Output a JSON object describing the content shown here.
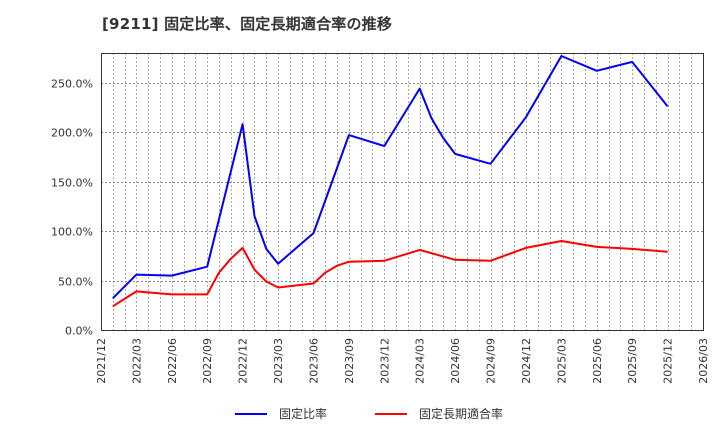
{
  "title": "[9211]  固定比率、固定長期適合率の推移",
  "colors": {
    "fixed_ratio": "#0000ff",
    "fixed_long_term_ratio": "#ff0000",
    "grid": "#aaaaaa",
    "axis": "#333333"
  },
  "legend": [
    {
      "label": "固定比率",
      "color": "#0000ff"
    },
    {
      "label": "固定長期適合率",
      "color": "#ff0000"
    }
  ],
  "chart_data": {
    "type": "line",
    "title": "[9211]  固定比率、固定長期適合率の推移",
    "xlabel": "",
    "ylabel": "",
    "ylim": [
      0,
      280
    ],
    "yticks": [
      0,
      50,
      100,
      150,
      200,
      250
    ],
    "ytick_labels": [
      "0.0%",
      "50.0%",
      "100.0%",
      "150.0%",
      "200.0%",
      "250.0%"
    ],
    "xtick_labels": [
      "2021/12",
      "2022/03",
      "2022/06",
      "2022/09",
      "2022/12",
      "2023/03",
      "2023/06",
      "2023/09",
      "2023/12",
      "2024/03",
      "2024/06",
      "2024/09",
      "2024/12",
      "2025/03",
      "2025/06",
      "2025/09",
      "2025/12",
      "2026/03"
    ],
    "x_start": "2021/12",
    "x_end": "2026/03",
    "x_unit": "month_offset_from_2021/12",
    "grid": true,
    "legend_position": "bottom",
    "series": [
      {
        "name": "固定比率",
        "color": "#0000ff",
        "points": [
          {
            "x": "2022/01",
            "m": 1,
            "y": 32
          },
          {
            "x": "2022/03",
            "m": 3,
            "y": 56
          },
          {
            "x": "2022/06",
            "m": 6,
            "y": 55
          },
          {
            "x": "2022/09",
            "m": 9,
            "y": 64
          },
          {
            "x": "2022/12",
            "m": 12,
            "y": 208
          },
          {
            "x": "2023/01",
            "m": 13,
            "y": 115
          },
          {
            "x": "2023/02",
            "m": 14,
            "y": 82
          },
          {
            "x": "2023/03",
            "m": 15,
            "y": 67
          },
          {
            "x": "2023/06",
            "m": 18,
            "y": 98
          },
          {
            "x": "2023/09",
            "m": 21,
            "y": 197
          },
          {
            "x": "2023/12",
            "m": 24,
            "y": 186
          },
          {
            "x": "2024/03",
            "m": 27,
            "y": 244
          },
          {
            "x": "2024/04",
            "m": 28,
            "y": 214
          },
          {
            "x": "2024/05",
            "m": 29,
            "y": 194
          },
          {
            "x": "2024/06",
            "m": 30,
            "y": 178
          },
          {
            "x": "2024/09",
            "m": 33,
            "y": 168
          },
          {
            "x": "2024/12",
            "m": 36,
            "y": 215
          },
          {
            "x": "2025/03",
            "m": 39,
            "y": 277
          },
          {
            "x": "2025/06",
            "m": 42,
            "y": 262
          },
          {
            "x": "2025/09",
            "m": 45,
            "y": 271
          },
          {
            "x": "2025/12",
            "m": 48,
            "y": 226
          }
        ]
      },
      {
        "name": "固定長期適合率",
        "color": "#ff0000",
        "points": [
          {
            "x": "2022/01",
            "m": 1,
            "y": 24
          },
          {
            "x": "2022/03",
            "m": 3,
            "y": 39
          },
          {
            "x": "2022/06",
            "m": 6,
            "y": 36
          },
          {
            "x": "2022/09",
            "m": 9,
            "y": 36
          },
          {
            "x": "2022/10",
            "m": 10,
            "y": 58
          },
          {
            "x": "2022/11",
            "m": 11,
            "y": 72
          },
          {
            "x": "2022/12",
            "m": 12,
            "y": 83
          },
          {
            "x": "2023/01",
            "m": 13,
            "y": 61
          },
          {
            "x": "2023/02",
            "m": 14,
            "y": 49
          },
          {
            "x": "2023/03",
            "m": 15,
            "y": 43
          },
          {
            "x": "2023/06",
            "m": 18,
            "y": 47
          },
          {
            "x": "2023/07",
            "m": 19,
            "y": 58
          },
          {
            "x": "2023/08",
            "m": 20,
            "y": 65
          },
          {
            "x": "2023/09",
            "m": 21,
            "y": 69
          },
          {
            "x": "2023/12",
            "m": 24,
            "y": 70
          },
          {
            "x": "2024/03",
            "m": 27,
            "y": 81
          },
          {
            "x": "2024/06",
            "m": 30,
            "y": 71
          },
          {
            "x": "2024/09",
            "m": 33,
            "y": 70
          },
          {
            "x": "2024/12",
            "m": 36,
            "y": 83
          },
          {
            "x": "2025/03",
            "m": 39,
            "y": 90
          },
          {
            "x": "2025/06",
            "m": 42,
            "y": 84
          },
          {
            "x": "2025/09",
            "m": 45,
            "y": 82
          },
          {
            "x": "2025/12",
            "m": 48,
            "y": 79
          }
        ]
      }
    ]
  }
}
